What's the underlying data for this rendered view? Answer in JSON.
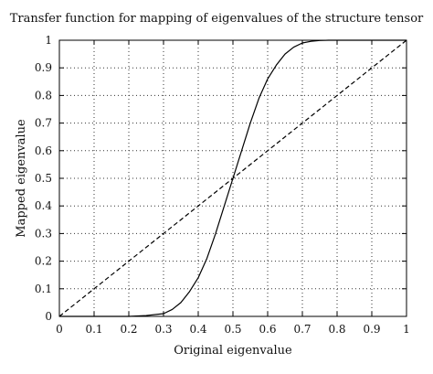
{
  "chart_data": {
    "type": "line",
    "title": "Transfer function for mapping of eigenvalues of the structure tensor",
    "xlabel": "Original eigenvalue",
    "ylabel": "Mapped eigenvalue",
    "xlim": [
      0,
      1
    ],
    "ylim": [
      0,
      1
    ],
    "xticks": [
      0,
      0.1,
      0.2,
      0.3,
      0.4,
      0.5,
      0.6,
      0.7,
      0.8,
      0.9,
      1
    ],
    "xtick_labels": [
      "0",
      "0.1",
      "0.2",
      "0.3",
      "0.4",
      "0.5",
      "0.6",
      "0.7",
      "0.8",
      "0.9",
      "1"
    ],
    "yticks": [
      0,
      0.1,
      0.2,
      0.3,
      0.4,
      0.5,
      0.6,
      0.7,
      0.8,
      0.9,
      1
    ],
    "ytick_labels": [
      "0",
      "0.1",
      "0.2",
      "0.3",
      "0.4",
      "0.5",
      "0.6",
      "0.7",
      "0.8",
      "0.9",
      "1"
    ],
    "grid": true,
    "grid_style": "dotted",
    "legend": false,
    "series": [
      {
        "style": "solid",
        "color": "#000000",
        "x": [
          0,
          0.2,
          0.25,
          0.3,
          0.325,
          0.35,
          0.375,
          0.4,
          0.425,
          0.45,
          0.475,
          0.5,
          0.525,
          0.55,
          0.575,
          0.6,
          0.625,
          0.65,
          0.675,
          0.7,
          0.725,
          0.75,
          0.775,
          0.8,
          1
        ],
        "y": [
          0,
          0,
          0.003,
          0.01,
          0.025,
          0.05,
          0.09,
          0.14,
          0.21,
          0.3,
          0.4,
          0.5,
          0.6,
          0.7,
          0.79,
          0.86,
          0.91,
          0.95,
          0.975,
          0.99,
          0.996,
          0.999,
          1,
          1,
          1
        ]
      },
      {
        "style": "dashed",
        "color": "#000000",
        "x": [
          0,
          1
        ],
        "y": [
          0,
          1
        ]
      }
    ]
  }
}
